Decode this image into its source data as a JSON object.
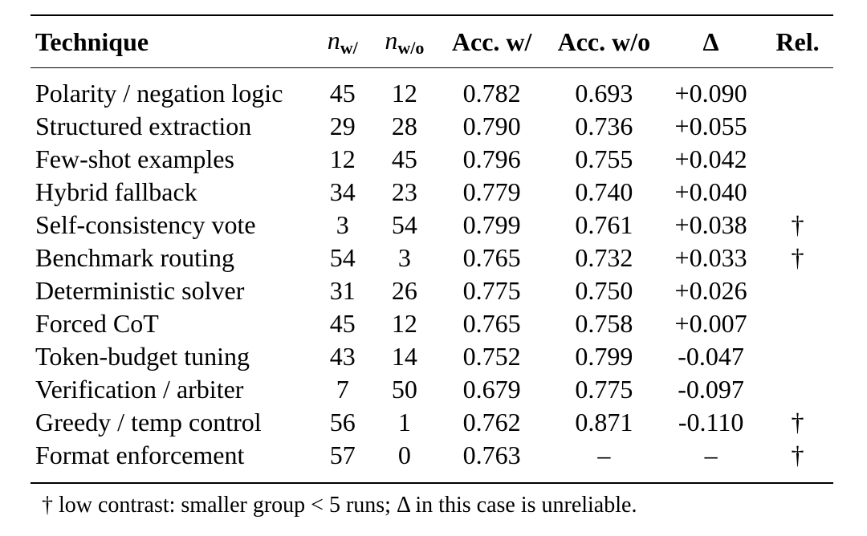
{
  "table": {
    "headers": {
      "technique": "Technique",
      "n_with_sym": "n",
      "n_with_sub": "w/",
      "n_without_sym": "n",
      "n_without_sub": "w/o",
      "acc_with": "Acc. w/",
      "acc_without": "Acc. w/o",
      "delta": "Δ",
      "rel": "Rel."
    },
    "rows": [
      {
        "technique": "Polarity / negation logic",
        "n_w": "45",
        "n_wo": "12",
        "acc_w": "0.782",
        "acc_wo": "0.693",
        "delta": "+0.090",
        "rel": ""
      },
      {
        "technique": "Structured extraction",
        "n_w": "29",
        "n_wo": "28",
        "acc_w": "0.790",
        "acc_wo": "0.736",
        "delta": "+0.055",
        "rel": ""
      },
      {
        "technique": "Few-shot examples",
        "n_w": "12",
        "n_wo": "45",
        "acc_w": "0.796",
        "acc_wo": "0.755",
        "delta": "+0.042",
        "rel": ""
      },
      {
        "technique": "Hybrid fallback",
        "n_w": "34",
        "n_wo": "23",
        "acc_w": "0.779",
        "acc_wo": "0.740",
        "delta": "+0.040",
        "rel": ""
      },
      {
        "technique": "Self-consistency vote",
        "n_w": "3",
        "n_wo": "54",
        "acc_w": "0.799",
        "acc_wo": "0.761",
        "delta": "+0.038",
        "rel": "†"
      },
      {
        "technique": "Benchmark routing",
        "n_w": "54",
        "n_wo": "3",
        "acc_w": "0.765",
        "acc_wo": "0.732",
        "delta": "+0.033",
        "rel": "†"
      },
      {
        "technique": "Deterministic solver",
        "n_w": "31",
        "n_wo": "26",
        "acc_w": "0.775",
        "acc_wo": "0.750",
        "delta": "+0.026",
        "rel": ""
      },
      {
        "technique": "Forced CoT",
        "n_w": "45",
        "n_wo": "12",
        "acc_w": "0.765",
        "acc_wo": "0.758",
        "delta": "+0.007",
        "rel": ""
      },
      {
        "technique": "Token-budget tuning",
        "n_w": "43",
        "n_wo": "14",
        "acc_w": "0.752",
        "acc_wo": "0.799",
        "delta": "-0.047",
        "rel": ""
      },
      {
        "technique": "Verification / arbiter",
        "n_w": "7",
        "n_wo": "50",
        "acc_w": "0.679",
        "acc_wo": "0.775",
        "delta": "-0.097",
        "rel": ""
      },
      {
        "technique": "Greedy / temp control",
        "n_w": "56",
        "n_wo": "1",
        "acc_w": "0.762",
        "acc_wo": "0.871",
        "delta": "-0.110",
        "rel": "†"
      },
      {
        "technique": "Format enforcement",
        "n_w": "57",
        "n_wo": "0",
        "acc_w": "0.763",
        "acc_wo": "–",
        "delta": "–",
        "rel": "†"
      }
    ]
  },
  "footnote": "† low contrast: smaller group < 5 runs; Δ in this case is unreliable."
}
